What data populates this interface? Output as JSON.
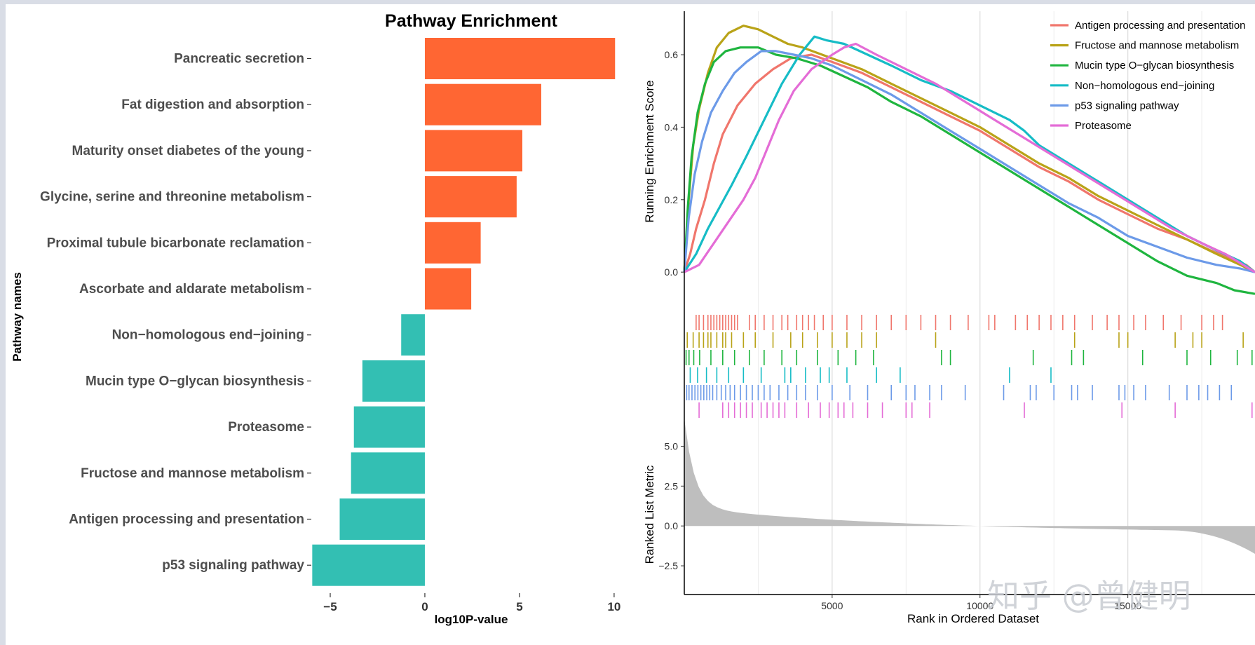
{
  "watermark": "知乎 @曾健明",
  "chart_data": [
    {
      "type": "bar",
      "orientation": "horizontal",
      "title": "Pathway Enrichment",
      "xlabel": "log10P-value",
      "ylabel": "Pathway names",
      "xlim": [
        -6,
        10.3
      ],
      "xticks": [
        -5,
        0,
        5,
        10
      ],
      "positive_color": "#FF6633",
      "negative_color": "#33BFB3",
      "categories": [
        "Pancreatic secretion",
        "Fat digestion and absorption",
        "Maturity onset diabetes of the young",
        "Glycine, serine and threonine metabolism",
        "Proximal tubule bicarbonate reclamation",
        "Ascorbate and aldarate metabolism",
        "Non−homologous end−joining",
        "Mucin type O−glycan biosynthesis",
        "Proteasome",
        "Fructose and mannose metabolism",
        "Antigen processing and presentation",
        "p53 signaling pathway"
      ],
      "values": [
        10.05,
        6.15,
        5.15,
        4.85,
        2.95,
        2.45,
        -1.25,
        -3.3,
        -3.75,
        -3.9,
        -4.5,
        -5.95
      ]
    },
    {
      "type": "line",
      "subtype": "gsea",
      "xlabel": "Rank in Ordered Dataset",
      "ylabel": "Running Enrichment Score",
      "ylabel2": "Ranked List Metric",
      "xlim": [
        0,
        19300
      ],
      "ylim": [
        -0.05,
        0.72
      ],
      "ylim2": [
        -4.3,
        5.9
      ],
      "xticks": [
        5000,
        10000,
        15000
      ],
      "yticks": [
        0,
        0.2,
        0.4,
        0.6
      ],
      "yticks2": [
        -2.5,
        0,
        2.5,
        5
      ],
      "ytick_labels": [
        "0.0",
        "0.2",
        "0.4",
        "0.6"
      ],
      "ytick2_labels": [
        "−2.5",
        "0.0",
        "2.5",
        "5.0"
      ],
      "legend_position": "top-right",
      "series": [
        {
          "name": "Antigen processing and presentation",
          "color": "#F0766C",
          "x": [
            0,
            200,
            400,
            700,
            1000,
            1300,
            1800,
            2400,
            3000,
            3600,
            4300,
            5000,
            6000,
            7000,
            8000,
            9000,
            10000,
            11000,
            12000,
            13000,
            14000,
            15000,
            16000,
            17000,
            17800,
            18400,
            19000,
            19300
          ],
          "y": [
            0,
            0.05,
            0.12,
            0.2,
            0.3,
            0.38,
            0.46,
            0.52,
            0.56,
            0.59,
            0.6,
            0.58,
            0.55,
            0.51,
            0.47,
            0.43,
            0.39,
            0.34,
            0.29,
            0.25,
            0.2,
            0.16,
            0.12,
            0.09,
            0.06,
            0.04,
            0.02,
            0
          ]
        },
        {
          "name": "Fructose and mannose metabolism",
          "color": "#B9A318",
          "x": [
            0,
            150,
            300,
            500,
            800,
            1100,
            1500,
            2000,
            2500,
            3000,
            3500,
            4000,
            5000,
            6000,
            7000,
            8000,
            9000,
            10000,
            11000,
            12000,
            13000,
            14000,
            15000,
            16000,
            17000,
            18000,
            18800,
            19300
          ],
          "y": [
            0,
            0.2,
            0.35,
            0.45,
            0.55,
            0.62,
            0.66,
            0.68,
            0.67,
            0.65,
            0.63,
            0.62,
            0.59,
            0.56,
            0.52,
            0.48,
            0.44,
            0.4,
            0.35,
            0.3,
            0.26,
            0.21,
            0.17,
            0.13,
            0.09,
            0.05,
            0.02,
            0
          ]
        },
        {
          "name": "Mucin type O−glycan biosynthesis",
          "color": "#1FB53F",
          "x": [
            0,
            120,
            250,
            450,
            700,
            1000,
            1400,
            1900,
            2500,
            3100,
            3800,
            4600,
            5400,
            6200,
            7000,
            8000,
            9000,
            10000,
            11000,
            12000,
            13000,
            14000,
            15000,
            16000,
            17000,
            18000,
            18600,
            19300
          ],
          "y": [
            0,
            0.18,
            0.32,
            0.44,
            0.52,
            0.58,
            0.61,
            0.62,
            0.62,
            0.6,
            0.59,
            0.57,
            0.54,
            0.51,
            0.47,
            0.43,
            0.38,
            0.33,
            0.28,
            0.23,
            0.18,
            0.13,
            0.08,
            0.03,
            -0.01,
            -0.03,
            -0.05,
            -0.06
          ]
        },
        {
          "name": "Non−homologous end−joining",
          "color": "#16BCC6",
          "x": [
            0,
            400,
            800,
            1200,
            1600,
            2100,
            2700,
            3300,
            3900,
            4400,
            4800,
            5400,
            6200,
            7000,
            8000,
            9000,
            10000,
            11000,
            11500,
            12000,
            13000,
            14000,
            15000,
            16000,
            17000,
            18000,
            18800,
            19300
          ],
          "y": [
            0,
            0.05,
            0.12,
            0.18,
            0.24,
            0.32,
            0.42,
            0.52,
            0.6,
            0.65,
            0.64,
            0.63,
            0.6,
            0.57,
            0.53,
            0.5,
            0.46,
            0.42,
            0.39,
            0.35,
            0.3,
            0.25,
            0.2,
            0.15,
            0.1,
            0.06,
            0.03,
            0
          ]
        },
        {
          "name": "p53 signaling pathway",
          "color": "#6C9AE8",
          "x": [
            0,
            150,
            350,
            600,
            900,
            1300,
            1700,
            2100,
            2600,
            3100,
            3700,
            4300,
            5000,
            6000,
            7000,
            8000,
            9000,
            10000,
            11000,
            12000,
            13000,
            14000,
            15000,
            16000,
            17000,
            18000,
            18800,
            19300
          ],
          "y": [
            0,
            0.15,
            0.27,
            0.36,
            0.44,
            0.5,
            0.55,
            0.58,
            0.61,
            0.61,
            0.6,
            0.59,
            0.57,
            0.53,
            0.49,
            0.44,
            0.39,
            0.34,
            0.29,
            0.24,
            0.19,
            0.15,
            0.1,
            0.07,
            0.04,
            0.02,
            0.01,
            0
          ]
        },
        {
          "name": "Proteasome",
          "color": "#E46CD6",
          "x": [
            0,
            500,
            1000,
            1500,
            2000,
            2400,
            2800,
            3200,
            3700,
            4300,
            5000,
            5400,
            5800,
            6500,
            7500,
            8500,
            9500,
            10500,
            11500,
            12500,
            13500,
            14500,
            15500,
            16500,
            17500,
            18300,
            18900,
            19300
          ],
          "y": [
            0,
            0.02,
            0.08,
            0.14,
            0.2,
            0.26,
            0.34,
            0.42,
            0.5,
            0.56,
            0.6,
            0.62,
            0.63,
            0.6,
            0.56,
            0.52,
            0.47,
            0.42,
            0.37,
            0.32,
            0.27,
            0.22,
            0.17,
            0.12,
            0.08,
            0.05,
            0.02,
            0
          ]
        }
      ],
      "hit_ranks": {
        "Fructose and mannose metabolism": [
          100,
          300,
          500,
          650,
          800,
          900,
          1100,
          1300,
          1400,
          1600,
          2000,
          2400,
          3000,
          3600,
          4000,
          4500,
          5000,
          5500,
          6000,
          6500,
          8500,
          13200,
          14700,
          15000,
          16600,
          17200,
          17500,
          18900
        ],
        "Non−homologous end−joining": [
          200,
          450,
          750,
          1100,
          1500,
          2000,
          2600,
          3400,
          3600,
          4100,
          4600,
          4900,
          5500,
          6500,
          7300,
          11000,
          12400
        ],
        "Mucin type O−glycan biosynthesis": [
          60,
          160,
          320,
          520,
          900,
          1300,
          1700,
          2200,
          2700,
          3300,
          3800,
          4500,
          5200,
          5800,
          6400,
          8700,
          9000,
          11800,
          13100,
          13500,
          15500,
          17000,
          17800,
          18700,
          19200
        ],
        "Proteasome": [
          500,
          1300,
          1500,
          1700,
          1900,
          2100,
          2300,
          2600,
          2800,
          3000,
          3200,
          3400,
          3800,
          4200,
          4600,
          4900,
          5200,
          5400,
          5700,
          6200,
          6700,
          7500,
          7700,
          8300,
          11500,
          14800,
          16600,
          19200
        ],
        "p53 signaling pathway": [
          80,
          160,
          260,
          360,
          460,
          560,
          660,
          760,
          860,
          960,
          1100,
          1250,
          1400,
          1550,
          1700,
          1900,
          2100,
          2300,
          2500,
          2700,
          2900,
          3200,
          3500,
          3800,
          4100,
          4500,
          5000,
          5600,
          6200,
          7000,
          7500,
          7800,
          8300,
          8700,
          9500,
          10800,
          11700,
          11900,
          12500,
          13100,
          13300,
          13800,
          14700,
          14900,
          15200,
          15600,
          16400,
          17000,
          17400,
          17700,
          18100,
          18500
        ],
        "Antigen processing and presentation": [
          400,
          500,
          650,
          800,
          900,
          1000,
          1100,
          1200,
          1300,
          1400,
          1500,
          1600,
          1700,
          1800,
          2200,
          2400,
          2700,
          3000,
          3300,
          3500,
          3800,
          4000,
          4200,
          4400,
          4700,
          5000,
          5500,
          6000,
          6500,
          7000,
          7500,
          8000,
          8500,
          9000,
          9600,
          10300,
          10500,
          11200,
          11600,
          12000,
          12400,
          12800,
          13200,
          13800,
          14300,
          14700,
          15200,
          15600,
          16200,
          16800,
          17500,
          17900,
          18200
        ]
      }
    }
  ]
}
